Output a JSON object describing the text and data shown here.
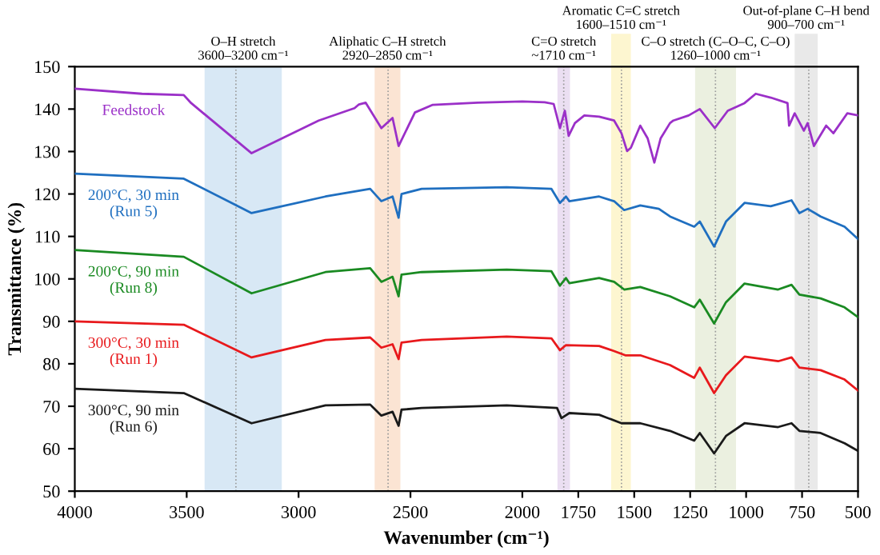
{
  "chart_data": {
    "type": "line",
    "xlabel": "Wavenumber (cm⁻¹)",
    "ylabel": "Transmittance (%)",
    "xlim": [
      4000,
      500
    ],
    "xticks": [
      4000,
      3500,
      3000,
      2500,
      2000,
      1750,
      1500,
      1250,
      1000,
      750,
      500
    ],
    "ylim": [
      50,
      150
    ],
    "yticks": [
      50,
      60,
      70,
      80,
      90,
      100,
      110,
      120,
      130,
      140,
      150
    ],
    "grid": false,
    "legend": false,
    "line_style": "solid",
    "marker": "none",
    "bands": [
      {
        "axis": "x",
        "from": 3420,
        "to": 3075,
        "label": "O–H stretch\n3600–3200 cm⁻¹",
        "color": "#d8e8f5"
      },
      {
        "axis": "x",
        "from": 2660,
        "to": 2545,
        "label": "Aliphatic C–H stretch\n2920–2850 cm⁻¹",
        "color": "#fbe4d3"
      },
      {
        "axis": "x",
        "from": 1843,
        "to": 1787,
        "label": "C=O stretch\n~1710 cm⁻¹",
        "color": "#ebdff2"
      },
      {
        "axis": "x",
        "from": 1603,
        "to": 1515,
        "label": "Aromatic C=C stretch\n1600–1510 cm⁻¹",
        "color": "#fdf6d0"
      },
      {
        "axis": "x",
        "from": 1228,
        "to": 1045,
        "label": "C–O stretch (C–O–C, C–O)\n1260–1000 cm⁻¹",
        "color": "#ebf0e0"
      },
      {
        "axis": "x",
        "from": 783,
        "to": 680,
        "label": "Out-of-plane C–H bend\n900–700 cm⁻¹",
        "color": "#e9e9e9"
      }
    ],
    "ref_lines": [
      {
        "axis": "x",
        "value": 3280,
        "color": "#999999",
        "line_style": "dotted"
      },
      {
        "axis": "x",
        "value": 2600,
        "color": "#999999",
        "line_style": "dotted"
      },
      {
        "axis": "x",
        "value": 1815,
        "color": "#999999",
        "line_style": "dotted"
      },
      {
        "axis": "x",
        "value": 1557,
        "color": "#999999",
        "line_style": "dotted"
      },
      {
        "axis": "x",
        "value": 1137,
        "color": "#999999",
        "line_style": "dotted"
      },
      {
        "axis": "x",
        "value": 720,
        "color": "#999999",
        "line_style": "dotted"
      }
    ],
    "series": [
      {
        "name": "Feedstock",
        "color": "#9b30c8",
        "x": [
          4000,
          3700,
          3513,
          3480,
          3210,
          2910,
          2750,
          2730,
          2700,
          2630,
          2580,
          2553,
          2480,
          2400,
          2200,
          2000,
          1900,
          1860,
          1832,
          1810,
          1793,
          1765,
          1723,
          1657,
          1590,
          1557,
          1532,
          1515,
          1473,
          1440,
          1410,
          1382,
          1340,
          1325,
          1257,
          1207,
          1140,
          1082,
          1007,
          957,
          890,
          815,
          808,
          783,
          742,
          725,
          697,
          642,
          610,
          548,
          500
        ],
        "values": [
          144.8,
          143.6,
          143.3,
          141.4,
          129.6,
          137.3,
          140.2,
          141.1,
          141.5,
          135.5,
          137.9,
          131.3,
          139.2,
          141.0,
          141.5,
          141.8,
          141.6,
          141.2,
          135.5,
          139.6,
          133.7,
          136.7,
          138.5,
          138.2,
          137.3,
          134.3,
          130.1,
          130.9,
          136.1,
          133.1,
          127.4,
          133.1,
          136.7,
          137.3,
          138.5,
          140.0,
          135.5,
          139.6,
          141.4,
          143.6,
          142.7,
          141.4,
          136.1,
          139.0,
          134.9,
          136.7,
          131.3,
          136.1,
          134.3,
          139.0,
          138.5
        ]
      },
      {
        "name": "200°C, 30 min\n(Run 5)",
        "color": "#1f6fc0",
        "x": [
          4000,
          3513,
          3210,
          2880,
          2680,
          2630,
          2580,
          2553,
          2540,
          2450,
          2070,
          1870,
          1832,
          1805,
          1790,
          1657,
          1590,
          1545,
          1473,
          1390,
          1340,
          1232,
          1207,
          1143,
          1090,
          1007,
          890,
          797,
          762,
          725,
          667,
          560,
          500
        ],
        "values": [
          124.8,
          123.6,
          115.5,
          119.4,
          121.2,
          118.3,
          119.4,
          114.4,
          120.0,
          121.2,
          121.6,
          121.2,
          117.9,
          119.4,
          118.3,
          119.4,
          118.3,
          116.2,
          117.3,
          116.5,
          114.7,
          112.3,
          113.5,
          107.6,
          113.5,
          117.9,
          117.1,
          118.5,
          115.5,
          116.5,
          114.7,
          112.3,
          109.4
        ]
      },
      {
        "name": "200°C, 90 min\n(Run 8)",
        "color": "#1a8a22",
        "x": [
          4000,
          3513,
          3210,
          2880,
          2680,
          2630,
          2580,
          2553,
          2540,
          2450,
          2070,
          1870,
          1832,
          1805,
          1790,
          1657,
          1590,
          1545,
          1473,
          1340,
          1232,
          1207,
          1143,
          1090,
          1007,
          857,
          797,
          762,
          667,
          560,
          500
        ],
        "values": [
          106.8,
          105.2,
          96.6,
          101.6,
          102.5,
          99.3,
          100.5,
          95.9,
          101.0,
          101.6,
          102.2,
          101.8,
          98.4,
          100.2,
          99.0,
          100.2,
          99.3,
          97.5,
          98.1,
          95.9,
          93.3,
          95.1,
          89.5,
          94.5,
          98.9,
          97.5,
          98.6,
          96.3,
          95.4,
          93.3,
          91.0
        ]
      },
      {
        "name": "300°C, 30 min\n(Run 1)",
        "color": "#e8191c",
        "x": [
          4000,
          3513,
          3210,
          2880,
          2680,
          2630,
          2580,
          2553,
          2540,
          2450,
          2070,
          1870,
          1832,
          1805,
          1657,
          1590,
          1540,
          1473,
          1340,
          1232,
          1207,
          1143,
          1090,
          1007,
          857,
          797,
          762,
          667,
          560,
          500
        ],
        "values": [
          90.0,
          89.2,
          81.5,
          85.6,
          86.2,
          83.8,
          84.6,
          81.1,
          85.0,
          85.6,
          86.4,
          86.0,
          83.2,
          84.4,
          84.2,
          83.0,
          82.0,
          82.0,
          79.7,
          76.7,
          79.1,
          73.1,
          77.3,
          81.7,
          80.6,
          81.5,
          79.1,
          78.5,
          76.3,
          73.7
        ]
      },
      {
        "name": "300°C, 90 min\n(Run 6)",
        "color": "#1a1a1a",
        "x": [
          4000,
          3513,
          3210,
          2880,
          2680,
          2630,
          2580,
          2553,
          2540,
          2450,
          2070,
          1845,
          1825,
          1790,
          1657,
          1557,
          1473,
          1340,
          1232,
          1207,
          1143,
          1090,
          1007,
          857,
          797,
          762,
          667,
          560,
          500
        ],
        "values": [
          74.1,
          73.1,
          66.0,
          70.2,
          70.4,
          67.8,
          68.7,
          65.4,
          69.2,
          69.6,
          70.2,
          69.6,
          67.2,
          68.4,
          68.0,
          66.0,
          66.0,
          64.2,
          61.9,
          63.7,
          58.9,
          63.0,
          66.0,
          65.1,
          66.0,
          64.2,
          63.7,
          61.3,
          59.5
        ]
      }
    ]
  }
}
